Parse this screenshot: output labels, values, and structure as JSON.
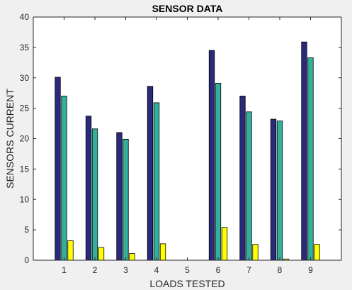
{
  "chart_data": {
    "type": "bar",
    "title": "SENSOR DATA",
    "xlabel": "LOADS TESTED",
    "ylabel": "SENSORS CURRENT",
    "categories": [
      "1",
      "2",
      "3",
      "4",
      "5",
      "6",
      "7",
      "8",
      "9"
    ],
    "series": [
      {
        "values": [
          30.1,
          23.7,
          21.0,
          28.6,
          0,
          34.5,
          27.0,
          23.2,
          35.9
        ]
      },
      {
        "values": [
          27.0,
          21.6,
          19.9,
          25.9,
          0,
          29.1,
          24.4,
          22.9,
          33.3
        ]
      },
      {
        "values": [
          3.2,
          2.1,
          1.1,
          2.7,
          0,
          5.4,
          2.6,
          0.2,
          2.6
        ]
      }
    ],
    "ylim": [
      0,
      40
    ],
    "yticks": [
      "0",
      "5",
      "10",
      "15",
      "20",
      "25",
      "30",
      "35",
      "40"
    ],
    "grid": false,
    "colors": [
      "#2a2a7a",
      "#33b09b",
      "#ffff00"
    ],
    "background": "#ffffff",
    "figure_background": "#f0f0f0"
  }
}
